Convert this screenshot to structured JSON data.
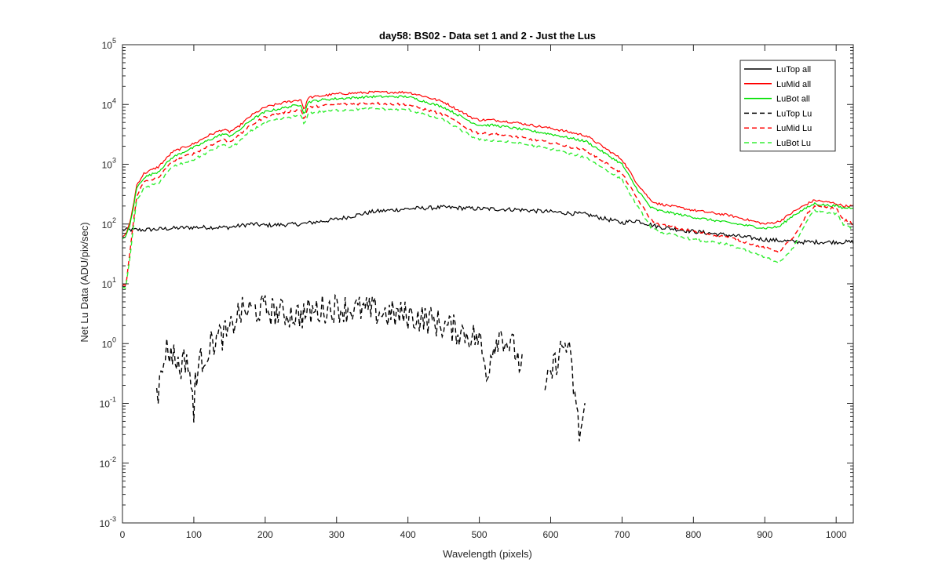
{
  "chart_data": {
    "type": "line",
    "title": "day58: BS02 - Data set 1 and 2 - Just the Lus",
    "xlabel": "Wavelength (pixels)",
    "ylabel": "Net Lu Data (ADU/pix/sec)",
    "xlim": [
      0,
      1024
    ],
    "ylim": [
      0.001,
      100000
    ],
    "yscale": "log",
    "grid": false,
    "legend_position": "top-right",
    "x_ticks": [
      "0",
      "100",
      "200",
      "300",
      "400",
      "500",
      "600",
      "700",
      "800",
      "900",
      "1000"
    ],
    "x_tick_values": [
      0,
      100,
      200,
      300,
      400,
      500,
      600,
      700,
      800,
      900,
      1000
    ],
    "y_ticks": [
      {
        "base": "10",
        "exp": "-3",
        "value": 0.001
      },
      {
        "base": "10",
        "exp": "-2",
        "value": 0.01
      },
      {
        "base": "10",
        "exp": "-1",
        "value": 0.1
      },
      {
        "base": "10",
        "exp": "0",
        "value": 1
      },
      {
        "base": "10",
        "exp": "1",
        "value": 10
      },
      {
        "base": "10",
        "exp": "2",
        "value": 100
      },
      {
        "base": "10",
        "exp": "3",
        "value": 1000
      },
      {
        "base": "10",
        "exp": "4",
        "value": 10000
      },
      {
        "base": "10",
        "exp": "5",
        "value": 100000
      }
    ],
    "series": [
      {
        "name": "LuTop  all",
        "color": "#000000",
        "dash": "solid",
        "x": [
          0,
          10,
          30,
          50,
          80,
          100,
          150,
          180,
          200,
          250,
          300,
          350,
          400,
          450,
          500,
          550,
          600,
          650,
          700,
          720,
          750,
          800,
          850,
          900,
          950,
          1000,
          1024
        ],
        "y": [
          80,
          80,
          80,
          82,
          86,
          88,
          88,
          100,
          95,
          100,
          120,
          160,
          180,
          190,
          180,
          175,
          160,
          145,
          105,
          115,
          90,
          75,
          65,
          55,
          50,
          50,
          50
        ]
      },
      {
        "name": "LuMid  all",
        "color": "#ff0000",
        "dash": "solid",
        "x": [
          0,
          5,
          10,
          15,
          20,
          30,
          50,
          70,
          90,
          100,
          120,
          140,
          150,
          160,
          180,
          200,
          230,
          250,
          255,
          260,
          280,
          300,
          350,
          400,
          420,
          450,
          490,
          500,
          520,
          550,
          600,
          650,
          700,
          720,
          740,
          750,
          800,
          850,
          900,
          920,
          940,
          960,
          970,
          980,
          1000,
          1010,
          1024
        ],
        "y": [
          60,
          70,
          100,
          200,
          450,
          700,
          900,
          1600,
          2000,
          2200,
          3000,
          3800,
          3500,
          4000,
          6500,
          9000,
          11000,
          12000,
          8000,
          13000,
          14000,
          15000,
          16000,
          16000,
          14000,
          11000,
          6000,
          5500,
          5500,
          5000,
          4000,
          3000,
          1200,
          500,
          250,
          220,
          170,
          140,
          100,
          110,
          160,
          220,
          250,
          240,
          220,
          200,
          200
        ]
      },
      {
        "name": "LuBot  all",
        "color": "#00e000",
        "dash": "solid",
        "x": [
          0,
          5,
          10,
          15,
          20,
          30,
          50,
          70,
          90,
          100,
          120,
          140,
          150,
          160,
          180,
          200,
          230,
          250,
          255,
          260,
          280,
          300,
          350,
          400,
          420,
          450,
          490,
          500,
          520,
          550,
          600,
          650,
          700,
          720,
          740,
          750,
          800,
          850,
          900,
          920,
          940,
          960,
          970,
          980,
          1000,
          1010,
          1024
        ],
        "y": [
          55,
          65,
          90,
          180,
          400,
          600,
          750,
          1300,
          1700,
          1900,
          2500,
          3200,
          3000,
          3400,
          5500,
          7500,
          9000,
          10000,
          6800,
          11000,
          12000,
          12500,
          13500,
          13500,
          11500,
          9000,
          5000,
          4500,
          4500,
          4000,
          3200,
          2400,
          1000,
          400,
          190,
          170,
          130,
          105,
          85,
          90,
          140,
          190,
          220,
          210,
          200,
          185,
          190
        ]
      },
      {
        "name": "LuTop  Lu",
        "color": "#000000",
        "dash": "dashed",
        "x": [
          48,
          50,
          55,
          60,
          70,
          80,
          90,
          95,
          100,
          102,
          110,
          120,
          130,
          150,
          160,
          170,
          200,
          220,
          250,
          280,
          300,
          320,
          350,
          380,
          400,
          430,
          450,
          480,
          500,
          510,
          520,
          530,
          540,
          550,
          555,
          560
        ],
        "y": [
          0.3,
          0.15,
          0.3,
          0.8,
          0.7,
          0.4,
          0.6,
          0.3,
          0.05,
          0.3,
          0.5,
          0.8,
          1.2,
          1.5,
          3.0,
          3.5,
          3.8,
          3.2,
          3.0,
          3.8,
          4.0,
          3.8,
          3.5,
          3.0,
          3.0,
          2.5,
          2.0,
          1.5,
          1.2,
          0.3,
          1.0,
          1.5,
          1.0,
          0.8,
          0.5,
          0.4
        ]
      },
      {
        "name": "LuTop  Lu",
        "color": "#000000",
        "dash": "dashed",
        "x": [
          592,
          600,
          610,
          620,
          625,
          630,
          635,
          640,
          645,
          648
        ],
        "y": [
          0.15,
          0.3,
          0.6,
          1.0,
          0.8,
          0.3,
          0.1,
          0.03,
          0.05,
          0.1
        ]
      },
      {
        "name": "LuMid  Lu",
        "color": "#ff0000",
        "dash": "dashed",
        "x": [
          0,
          5,
          10,
          15,
          20,
          30,
          50,
          70,
          90,
          100,
          120,
          140,
          150,
          160,
          180,
          200,
          230,
          250,
          255,
          260,
          280,
          300,
          350,
          400,
          420,
          450,
          490,
          500,
          520,
          550,
          600,
          650,
          700,
          720,
          740,
          750,
          800,
          850,
          900,
          920,
          940,
          950,
          960,
          970,
          1000,
          1010,
          1024
        ],
        "y": [
          9,
          10,
          30,
          100,
          300,
          500,
          600,
          1100,
          1400,
          1500,
          2000,
          2600,
          2400,
          2800,
          4500,
          6200,
          7500,
          8200,
          5600,
          9000,
          9500,
          10000,
          10500,
          10000,
          8500,
          6800,
          3600,
          3300,
          3200,
          2900,
          2300,
          1700,
          700,
          280,
          120,
          100,
          75,
          60,
          40,
          35,
          60,
          90,
          150,
          200,
          180,
          120,
          100
        ]
      },
      {
        "name": "LuBot  Lu",
        "color": "#33ee33",
        "dash": "dashed",
        "x": [
          0,
          5,
          10,
          15,
          20,
          30,
          50,
          70,
          90,
          100,
          120,
          140,
          150,
          160,
          180,
          200,
          230,
          250,
          255,
          260,
          280,
          300,
          350,
          400,
          420,
          450,
          490,
          500,
          520,
          550,
          600,
          650,
          700,
          720,
          740,
          750,
          800,
          850,
          900,
          920,
          940,
          950,
          960,
          970,
          1000,
          1010,
          1024
        ],
        "y": [
          8,
          9,
          25,
          80,
          250,
          400,
          480,
          900,
          1100,
          1200,
          1600,
          2100,
          1900,
          2200,
          3600,
          5000,
          6000,
          6600,
          4500,
          7200,
          7600,
          8000,
          8500,
          8200,
          7000,
          5500,
          2900,
          2600,
          2500,
          2300,
          1800,
          1300,
          550,
          210,
          90,
          75,
          55,
          45,
          28,
          22,
          40,
          70,
          120,
          170,
          150,
          100,
          85
        ]
      }
    ],
    "legend": [
      {
        "label": "LuTop  all",
        "color": "#000000",
        "dash": "solid"
      },
      {
        "label": "LuMid  all",
        "color": "#ff0000",
        "dash": "solid"
      },
      {
        "label": "LuBot  all",
        "color": "#00e000",
        "dash": "solid"
      },
      {
        "label": "LuTop  Lu",
        "color": "#000000",
        "dash": "dashed"
      },
      {
        "label": "LuMid  Lu",
        "color": "#ff0000",
        "dash": "dashed"
      },
      {
        "label": "LuBot  Lu",
        "color": "#33ee33",
        "dash": "dashed"
      }
    ]
  }
}
